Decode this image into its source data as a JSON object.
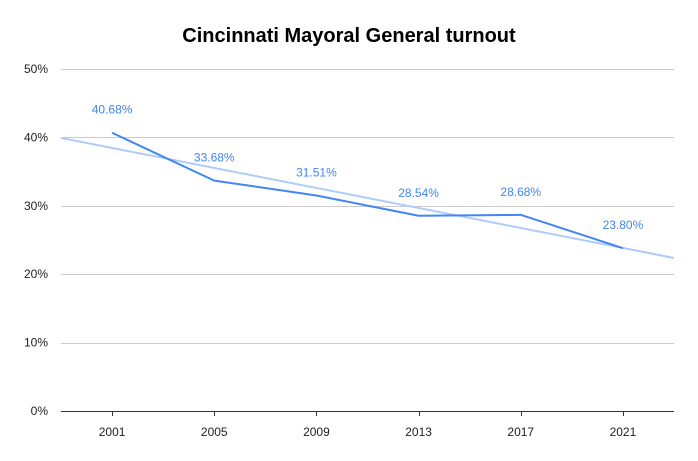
{
  "chart_data": {
    "type": "line",
    "title": "Cincinnati Mayoral General turnout",
    "xlabel": "",
    "ylabel": "",
    "categories": [
      "2001",
      "2005",
      "2009",
      "2013",
      "2017",
      "2021"
    ],
    "series": [
      {
        "values": [
          40.68,
          33.68,
          31.51,
          28.54,
          28.68,
          23.8
        ],
        "labels": [
          "40.68%",
          "33.68%",
          "31.51%",
          "28.54%",
          "28.68%",
          "23.80%"
        ],
        "color": "#4285f4"
      }
    ],
    "trendline": {
      "type": "linear",
      "color": "#aecbfa"
    },
    "ylim": [
      0,
      50
    ],
    "yticks": [
      0,
      10,
      20,
      30,
      40,
      50
    ],
    "ytick_labels": [
      "0%",
      "10%",
      "20%",
      "30%",
      "40%",
      "50%"
    ],
    "grid": true,
    "legend": "none"
  }
}
